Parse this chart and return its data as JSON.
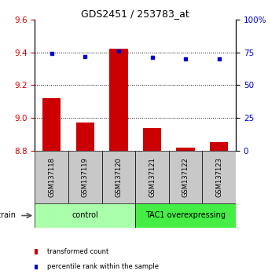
{
  "title": "GDS2451 / 253783_at",
  "samples": [
    "GSM137118",
    "GSM137119",
    "GSM137120",
    "GSM137121",
    "GSM137122",
    "GSM137123"
  ],
  "transformed_counts": [
    9.12,
    8.97,
    9.42,
    8.94,
    8.82,
    8.85
  ],
  "percentile_ranks": [
    74,
    72,
    76,
    71,
    70,
    70
  ],
  "bar_color": "#cc0000",
  "dot_color": "#0000cc",
  "ylim_left": [
    8.8,
    9.6
  ],
  "ylim_right": [
    0,
    100
  ],
  "yticks_left": [
    8.8,
    9.0,
    9.2,
    9.4,
    9.6
  ],
  "yticks_right": [
    0,
    25,
    50,
    75,
    100
  ],
  "ytick_labels_right": [
    "0",
    "25",
    "50",
    "75",
    "100%"
  ],
  "groups": [
    {
      "label": "control",
      "indices": [
        0,
        1,
        2
      ],
      "color": "#aaffaa"
    },
    {
      "label": "TAC1 overexpressing",
      "indices": [
        3,
        4,
        5
      ],
      "color": "#44ee44"
    }
  ],
  "legend_items": [
    {
      "label": "transformed count",
      "color": "#cc0000"
    },
    {
      "label": "percentile rank within the sample",
      "color": "#0000cc"
    }
  ],
  "strain_label": "strain",
  "bar_width": 0.55,
  "plot_bg": "#ffffff",
  "tick_color_left": "#cc0000",
  "tick_color_right": "#0000cc",
  "sample_box_color": "#c8c8c8",
  "group_box_border": "#000000"
}
